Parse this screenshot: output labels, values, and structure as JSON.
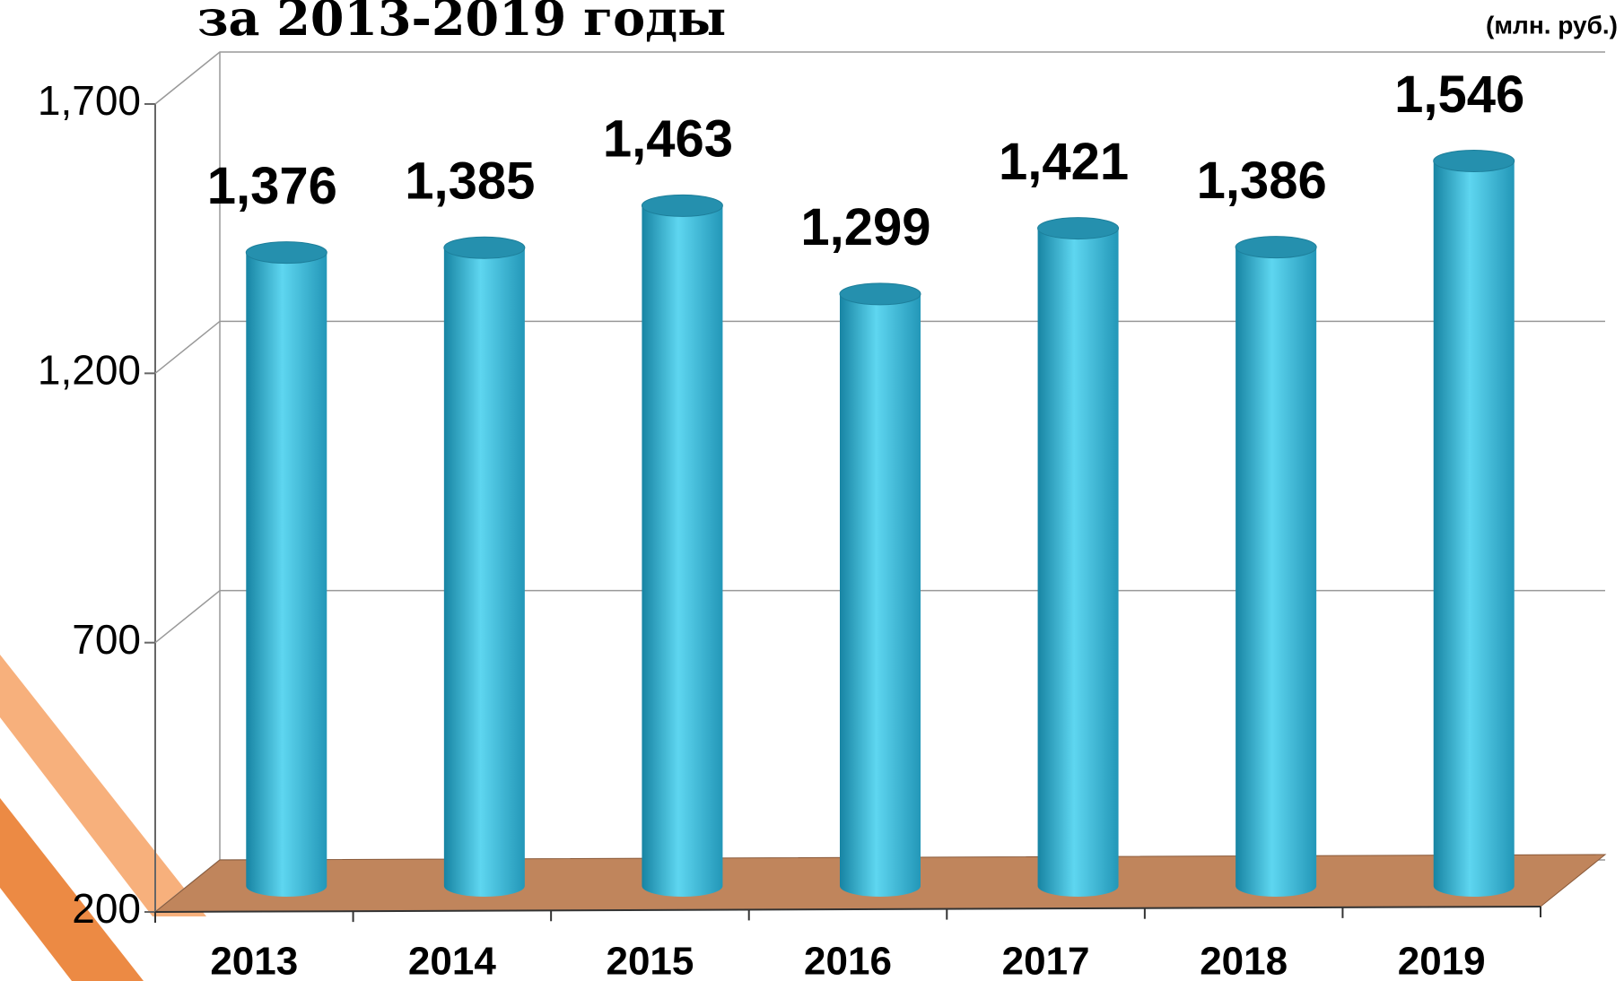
{
  "chart_data": {
    "type": "bar3d",
    "title": "за 2013-2019 годы",
    "subtitle": "(млн. руб.)",
    "categories": [
      "2013",
      "2014",
      "2015",
      "2016",
      "2017",
      "2018",
      "2019"
    ],
    "values": [
      1376,
      1385,
      1463,
      1299,
      1421,
      1386,
      1546
    ],
    "value_labels": [
      "1,376",
      "1,385",
      "1,463",
      "1,299",
      "1,421",
      "1,386",
      "1,546"
    ],
    "color": "#3bbcd9",
    "ylim": [
      200,
      1700
    ],
    "yticks": [
      200,
      700,
      {
        "value": 1200,
        "label": "1,200"
      },
      {
        "value": 1700,
        "label": "1,700"
      }
    ],
    "grid": true
  }
}
